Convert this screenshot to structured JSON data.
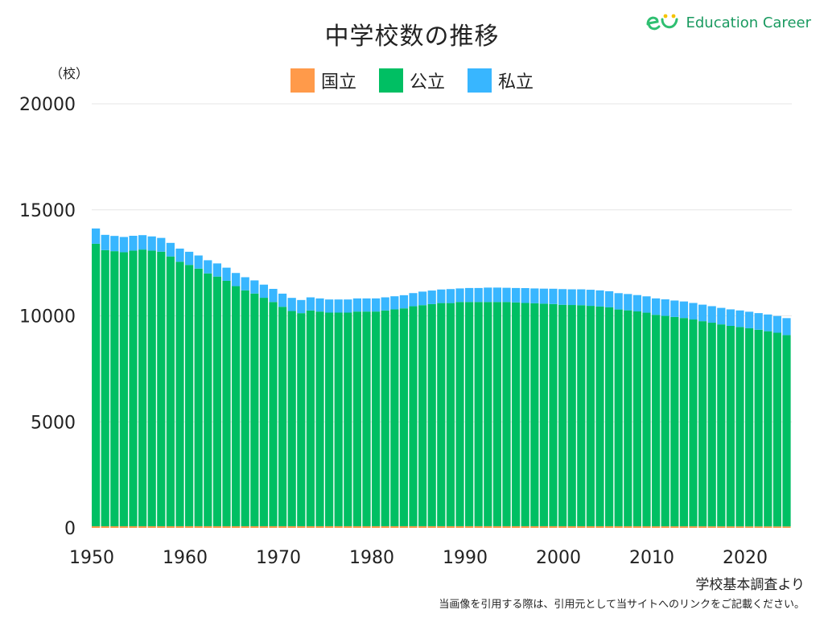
{
  "header": {
    "title": "中学校数の推移",
    "brand": "Education Career",
    "unit": "（校）"
  },
  "footer": {
    "source": "学校基本調査より",
    "note": "当画像を引用する際は、引用元として当サイトへのリンクをご記載ください。"
  },
  "colors": {
    "national": "#ff9a4a",
    "public": "#00bf63",
    "private": "#38b6ff",
    "logo_green": "#2fbf71",
    "logo_yellow": "#f5c400"
  },
  "chart_data": {
    "type": "bar",
    "stacked": true,
    "title": "中学校数の推移",
    "ylabel": "（校）",
    "xlabel": "",
    "ylim": [
      0,
      20000
    ],
    "yticks": [
      0,
      5000,
      10000,
      15000,
      20000
    ],
    "xticks": [
      1950,
      1960,
      1970,
      1980,
      1990,
      2000,
      2010,
      2020
    ],
    "grid": true,
    "legend_position": "top-center",
    "categories": [
      1950,
      1951,
      1952,
      1953,
      1954,
      1955,
      1956,
      1957,
      1958,
      1959,
      1960,
      1961,
      1962,
      1963,
      1964,
      1965,
      1966,
      1967,
      1968,
      1969,
      1970,
      1971,
      1972,
      1973,
      1974,
      1975,
      1976,
      1977,
      1978,
      1979,
      1980,
      1981,
      1982,
      1983,
      1984,
      1985,
      1986,
      1987,
      1988,
      1989,
      1990,
      1991,
      1992,
      1993,
      1994,
      1995,
      1996,
      1997,
      1998,
      1999,
      2000,
      2001,
      2002,
      2003,
      2004,
      2005,
      2006,
      2007,
      2008,
      2009,
      2010,
      2011,
      2012,
      2013,
      2014,
      2015,
      2016,
      2017,
      2018,
      2019,
      2020,
      2021,
      2022,
      2023,
      2024
    ],
    "series": [
      {
        "name": "国立",
        "color": "#ff9a4a",
        "values": [
          75,
          75,
          75,
          75,
          76,
          76,
          76,
          76,
          76,
          77,
          77,
          77,
          77,
          77,
          77,
          77,
          77,
          77,
          77,
          77,
          77,
          77,
          77,
          77,
          77,
          77,
          77,
          77,
          77,
          77,
          78,
          78,
          78,
          78,
          78,
          78,
          78,
          78,
          78,
          78,
          78,
          78,
          78,
          78,
          78,
          78,
          78,
          78,
          78,
          78,
          76,
          76,
          76,
          76,
          76,
          76,
          75,
          75,
          75,
          75,
          73,
          73,
          73,
          73,
          73,
          73,
          71,
          71,
          71,
          70,
          69,
          69,
          69,
          68,
          68
        ]
      },
      {
        "name": "公立",
        "color": "#00bf63",
        "values": [
          13325,
          13025,
          12975,
          12925,
          13000,
          13050,
          13000,
          12950,
          12725,
          12475,
          12325,
          12150,
          11925,
          11775,
          11575,
          11325,
          11125,
          10975,
          10775,
          10575,
          10350,
          10150,
          10050,
          10175,
          10125,
          10075,
          10075,
          10075,
          10125,
          10125,
          10125,
          10175,
          10225,
          10275,
          10375,
          10425,
          10475,
          10525,
          10525,
          10575,
          10575,
          10575,
          10575,
          10575,
          10575,
          10555,
          10530,
          10515,
          10495,
          10480,
          10445,
          10435,
          10425,
          10395,
          10365,
          10325,
          10225,
          10185,
          10135,
          10075,
          9975,
          9925,
          9875,
          9825,
          9755,
          9675,
          9605,
          9525,
          9455,
          9405,
          9345,
          9275,
          9205,
          9135,
          9025
        ]
      },
      {
        "name": "私立",
        "color": "#38b6ff",
        "values": [
          720,
          720,
          720,
          720,
          700,
          680,
          670,
          650,
          640,
          620,
          620,
          620,
          620,
          620,
          620,
          620,
          620,
          620,
          620,
          620,
          620,
          620,
          620,
          620,
          620,
          620,
          620,
          620,
          620,
          620,
          620,
          620,
          620,
          620,
          620,
          640,
          640,
          640,
          660,
          640,
          660,
          660,
          680,
          680,
          670,
          680,
          700,
          700,
          710,
          720,
          740,
          740,
          750,
          760,
          760,
          760,
          770,
          770,
          770,
          770,
          775,
          780,
          775,
          780,
          780,
          780,
          780,
          780,
          780,
          780,
          780,
          785,
          790,
          790,
          800
        ]
      }
    ]
  }
}
